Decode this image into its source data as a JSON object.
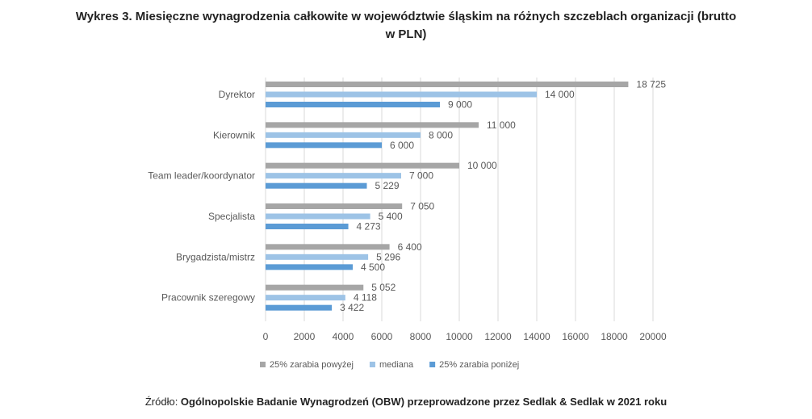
{
  "title_line1": "Wykres 3. Miesięczne wynagrodzenia całkowite w województwie śląskim na różnych szczeblach organizacji (brutto",
  "title_line2": "w PLN)",
  "source_prefix": "Źródło: ",
  "source_text": "Ogólnopolskie Badanie Wynagrodzeń (OBW) przeprowadzone przez Sedlak & Sedlak w 2021 roku",
  "chart_data": {
    "type": "bar",
    "orientation": "horizontal",
    "categories": [
      "Dyrektor",
      "Kierownik",
      "Team leader/koordynator",
      "Specjalista",
      "Brygadzista/mistrz",
      "Pracownik szeregowy"
    ],
    "series": [
      {
        "name": "25% zarabia powyżej",
        "color": "#a6a6a6",
        "values": [
          18725,
          11000,
          10000,
          7050,
          6400,
          5052
        ],
        "labels": [
          "18 725",
          "11 000",
          "10 000",
          "7 050",
          "6 400",
          "5 052"
        ]
      },
      {
        "name": "mediana",
        "color": "#9dc3e6",
        "values": [
          14000,
          8000,
          7000,
          5400,
          5296,
          4118
        ],
        "labels": [
          "14 000",
          "8 000",
          "7 000",
          "5 400",
          "5 296",
          "4 118"
        ]
      },
      {
        "name": "25% zarabia poniżej",
        "color": "#5b9bd5",
        "values": [
          9000,
          6000,
          5229,
          4273,
          4500,
          3422
        ],
        "labels": [
          "9 000",
          "6 000",
          "5 229",
          "4 273",
          "4 500",
          "3 422"
        ]
      }
    ],
    "xlim": [
      0,
      20000
    ],
    "xticks": [
      0,
      2000,
      4000,
      6000,
      8000,
      10000,
      12000,
      14000,
      16000,
      18000,
      20000
    ],
    "grid": true,
    "legend": "bottom"
  }
}
